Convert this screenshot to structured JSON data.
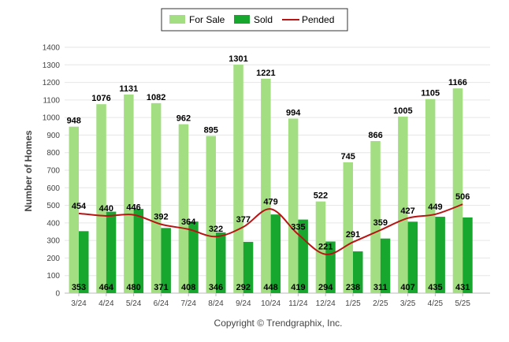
{
  "chart_data": {
    "type": "bar",
    "categories": [
      "3/24",
      "4/24",
      "5/24",
      "6/24",
      "7/24",
      "8/24",
      "9/24",
      "10/24",
      "11/24",
      "12/24",
      "1/25",
      "2/25",
      "3/25",
      "4/25",
      "5/25"
    ],
    "series": [
      {
        "name": "For Sale",
        "kind": "bar",
        "color": "#a3df82",
        "values": [
          948,
          1076,
          1131,
          1082,
          962,
          895,
          1301,
          1221,
          994,
          522,
          745,
          866,
          1005,
          1105,
          1166
        ]
      },
      {
        "name": "Sold",
        "kind": "bar",
        "color": "#17a62e",
        "values": [
          353,
          464,
          480,
          371,
          408,
          346,
          292,
          448,
          419,
          294,
          238,
          311,
          407,
          435,
          431
        ]
      },
      {
        "name": "Pended",
        "kind": "line",
        "color": "#b81414",
        "values": [
          454,
          440,
          446,
          392,
          364,
          322,
          377,
          479,
          335,
          221,
          291,
          359,
          427,
          449,
          506
        ]
      }
    ],
    "xlabel": "",
    "ylabel": "Number of Homes",
    "ylim": [
      0,
      1400
    ],
    "yticks": [
      0,
      100,
      200,
      300,
      400,
      500,
      600,
      700,
      800,
      900,
      1000,
      1100,
      1200,
      1300,
      1400
    ],
    "grid": true,
    "legend_position": "top-center",
    "footer": "Copyright © Trendgraphix, Inc."
  }
}
